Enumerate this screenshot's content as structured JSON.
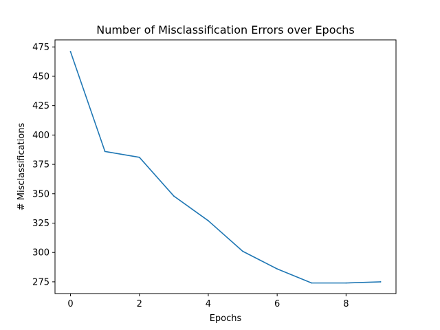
{
  "chart_data": {
    "type": "line",
    "title": "Number of Misclassification Errors over Epochs",
    "xlabel": "Epochs",
    "ylabel": "# Misclassifications",
    "x": [
      0,
      1,
      2,
      3,
      4,
      5,
      6,
      7,
      8,
      9
    ],
    "series": [
      {
        "values": [
          471,
          386,
          381,
          348,
          327,
          301,
          286,
          274,
          274,
          275
        ],
        "color": "#1f77b4"
      }
    ],
    "xlim": [
      -0.45,
      9.45
    ],
    "ylim": [
      265,
      481
    ],
    "xticks": [
      0,
      2,
      4,
      6,
      8
    ],
    "yticks": [
      275,
      300,
      325,
      350,
      375,
      400,
      425,
      450,
      475
    ],
    "grid": false,
    "legend": "none"
  }
}
